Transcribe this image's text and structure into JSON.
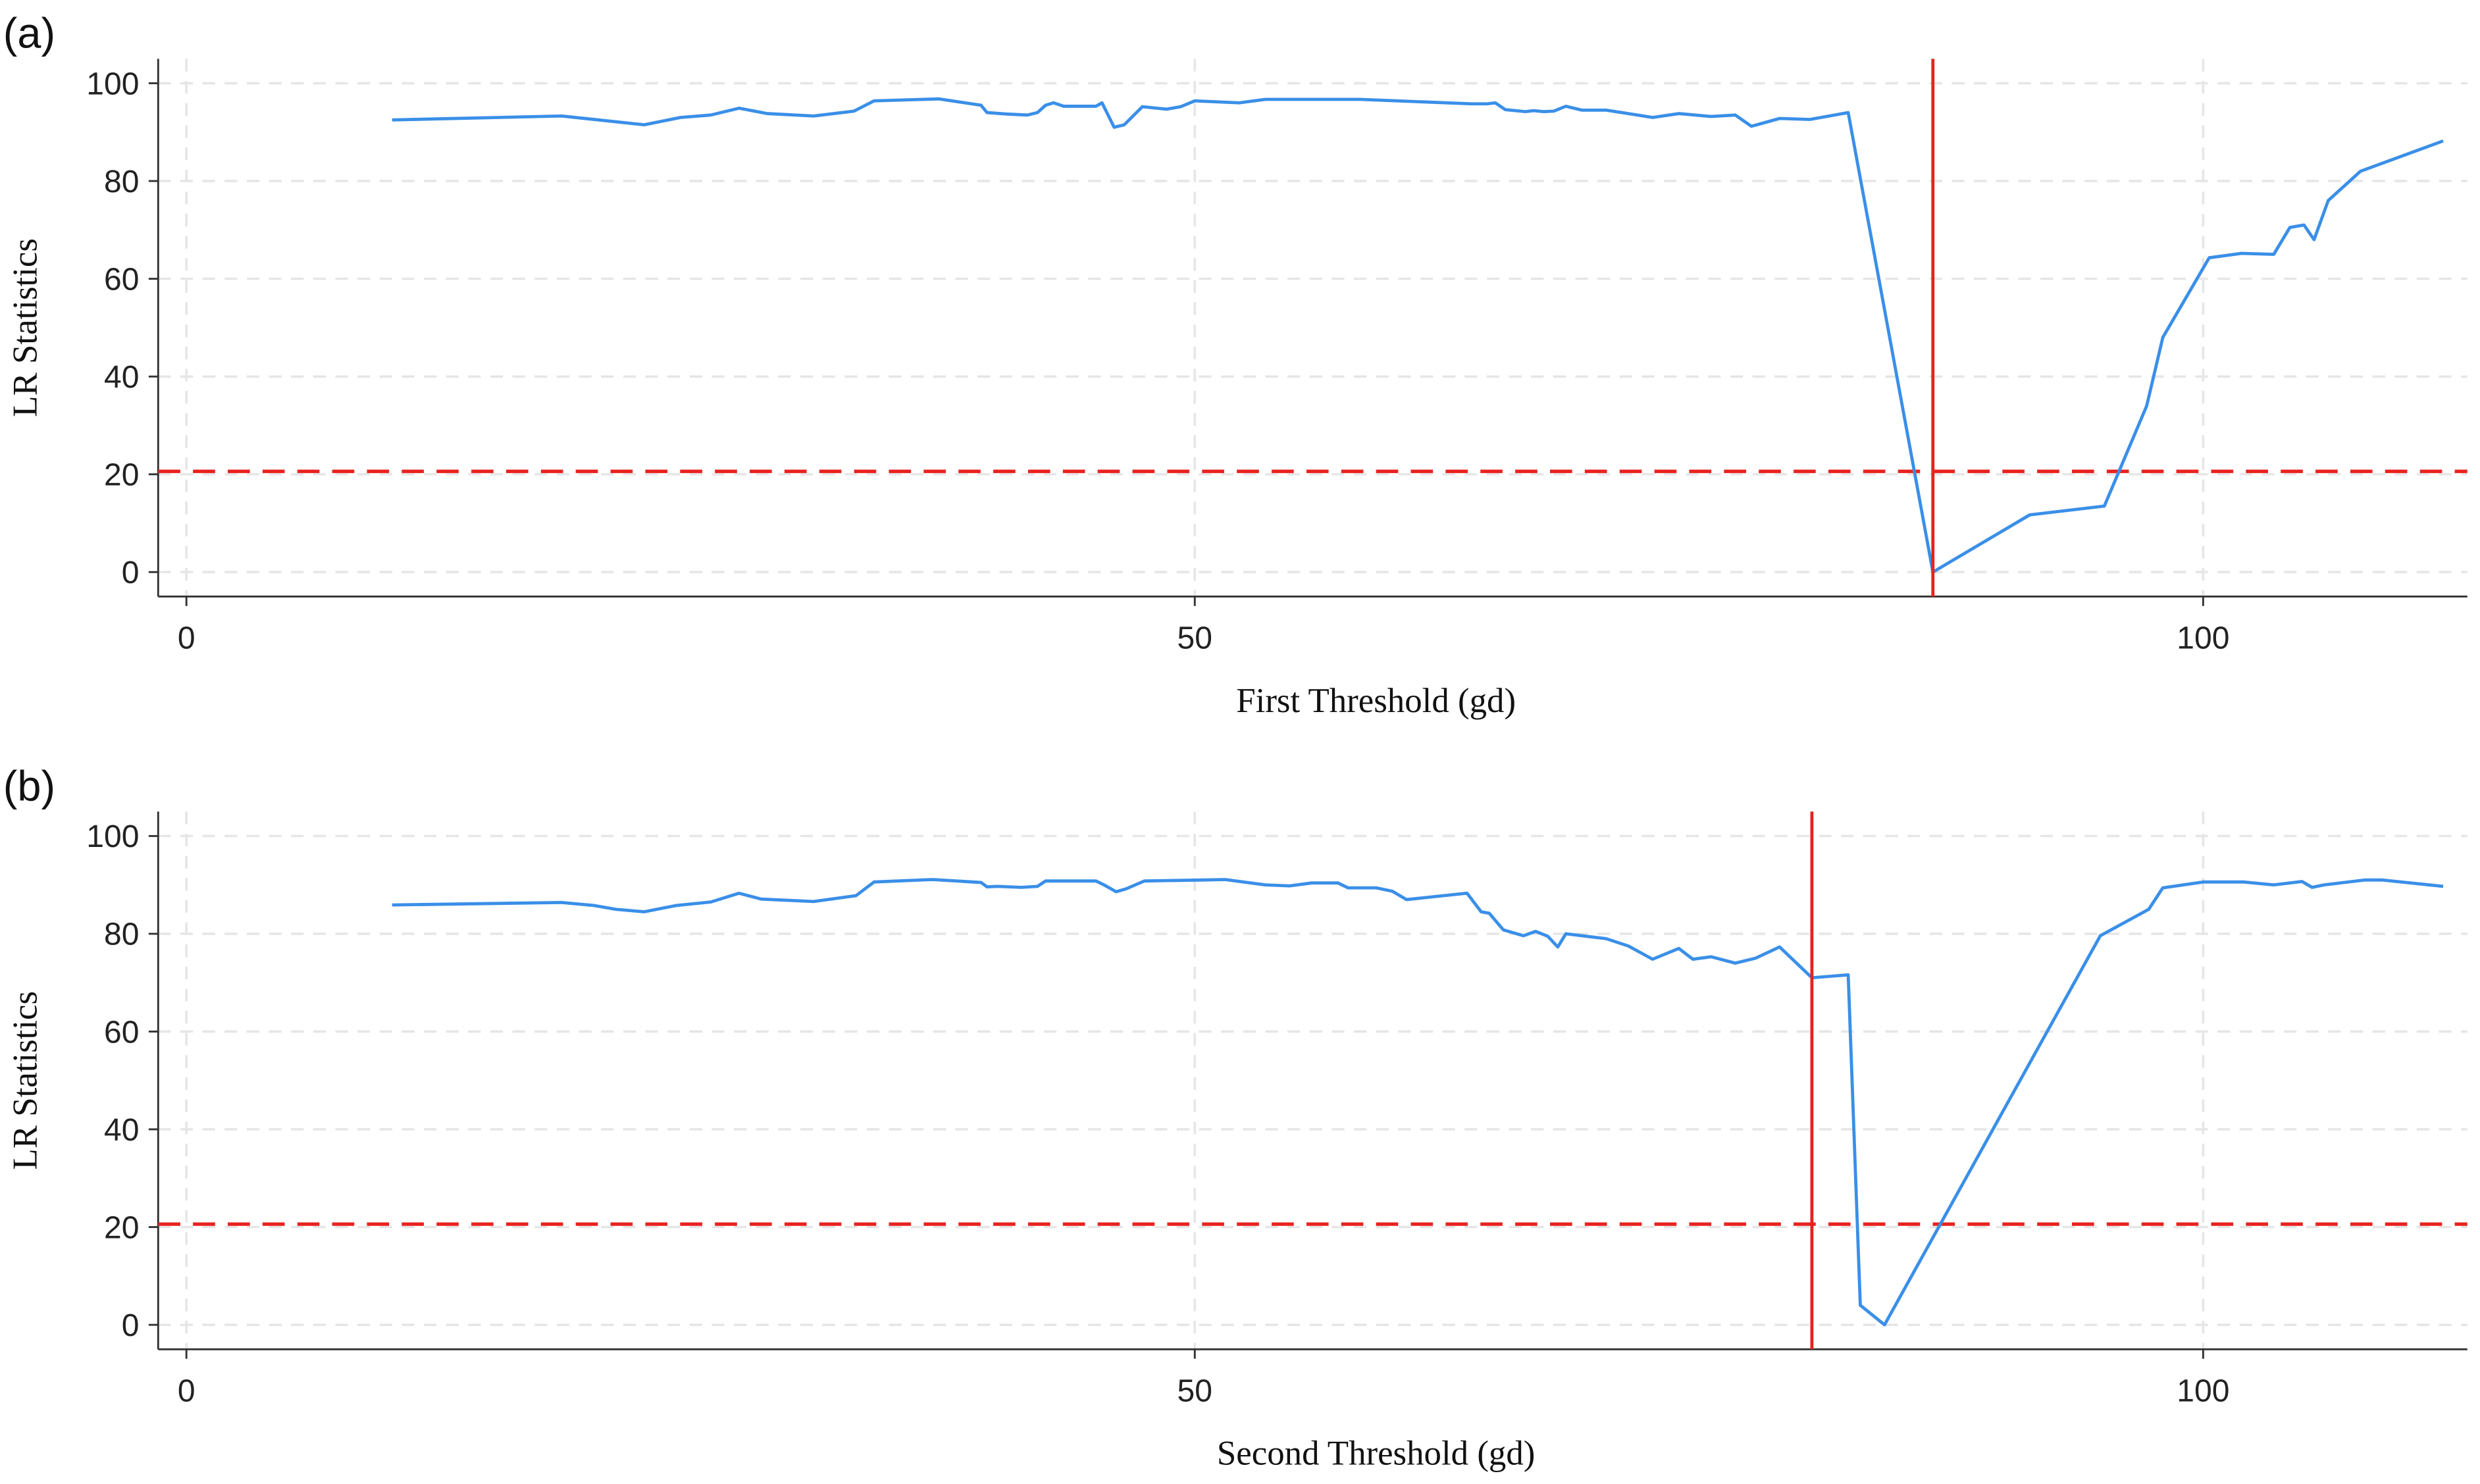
{
  "chart_data": [
    {
      "type": "line",
      "panel_label": "(a)",
      "xlabel": "First Threshold (gd)",
      "ylabel": "LR Statistics",
      "x": [
        10.2,
        18.6,
        22.7,
        24.5,
        26,
        27.4,
        28.8,
        31.1,
        33.1,
        34.1,
        37.3,
        39.4,
        39.7,
        40.7,
        41.7,
        42.2,
        42.6,
        43,
        43.5,
        45.1,
        45.4,
        46,
        46.5,
        47.4,
        48.6,
        49.3,
        50,
        52.2,
        53.5,
        58.2,
        63.7,
        64.5,
        64.9,
        65.4,
        66.4,
        66.8,
        67.3,
        67.8,
        68.4,
        69.2,
        70.4,
        71.5,
        72.7,
        74,
        75.6,
        76.8,
        77.6,
        79,
        80.5,
        82.4,
        86.6,
        91.4,
        95.1,
        97.2,
        98,
        100.3,
        101.9,
        103.5,
        104.3,
        105,
        105.5,
        106.2,
        107.8,
        111.9
      ],
      "values": [
        92.5,
        93.3,
        91.5,
        93,
        93.5,
        94.9,
        93.8,
        93.3,
        94.3,
        96.4,
        96.8,
        95.5,
        94,
        93.7,
        93.5,
        94,
        95.5,
        96,
        95.3,
        95.3,
        96,
        91,
        91.5,
        95.2,
        94.7,
        95.2,
        96.4,
        96,
        96.7,
        96.7,
        95.8,
        95.8,
        96,
        94.6,
        94.2,
        94.4,
        94.2,
        94.3,
        95.3,
        94.5,
        94.5,
        93.8,
        93,
        93.8,
        93.2,
        93.5,
        91.2,
        92.8,
        92.6,
        94,
        0,
        11.7,
        13.5,
        34,
        48,
        64.3,
        65.2,
        65,
        70.5,
        71,
        68,
        76,
        82,
        88.2
      ],
      "color": "#3a8fe8",
      "hline": 20.6,
      "vline": 86.6,
      "ref_color": "#e8221f",
      "xlim": [
        -1.4,
        113.1
      ],
      "ylim": [
        -5,
        105
      ],
      "xticks": [
        0,
        50,
        100
      ],
      "yticks": [
        0,
        20,
        40,
        60,
        80,
        100
      ],
      "grid": true
    },
    {
      "type": "line",
      "panel_label": "(b)",
      "xlabel": "Second Threshold (gd)",
      "ylabel": "LR Statistics",
      "x": [
        10.2,
        18.6,
        20.2,
        21.3,
        22.7,
        24.3,
        26,
        27.4,
        28.5,
        31.1,
        33.2,
        34.1,
        37,
        39.4,
        39.7,
        40.2,
        41.4,
        42.2,
        42.6,
        45.1,
        45.5,
        46.1,
        46.6,
        47.5,
        50.4,
        51.5,
        53.5,
        54.7,
        55.8,
        57.1,
        57.6,
        59,
        59.8,
        60.5,
        63.5,
        64.2,
        64.6,
        65.3,
        66.3,
        66.9,
        67.5,
        68,
        68.4,
        70.4,
        71.5,
        72.7,
        74,
        74.7,
        75.6,
        76.8,
        77.8,
        79,
        80.6,
        82.4,
        83,
        84.2,
        94.9,
        97.3,
        98,
        100,
        102,
        103.5,
        104.9,
        105.4,
        106,
        108,
        108.9,
        111.9
      ],
      "values": [
        85.9,
        86.4,
        85.8,
        85,
        84.5,
        85.8,
        86.5,
        88.3,
        87.1,
        86.6,
        87.8,
        90.6,
        91.1,
        90.5,
        89.6,
        89.7,
        89.5,
        89.7,
        90.8,
        90.8,
        90,
        88.6,
        89.2,
        90.8,
        91,
        91.1,
        90,
        89.8,
        90.4,
        90.4,
        89.4,
        89.4,
        88.7,
        87,
        88.3,
        84.5,
        84.2,
        80.8,
        79.6,
        80.5,
        79.5,
        77.3,
        80,
        79,
        77.5,
        74.8,
        77,
        74.8,
        75.3,
        74,
        75,
        77.3,
        71,
        71.6,
        4,
        0,
        79.6,
        85,
        89.4,
        90.6,
        90.6,
        90,
        90.7,
        89.5,
        90,
        91,
        91,
        89.7
      ],
      "color": "#3a8fe8",
      "hline": 20.6,
      "vline": 80.6,
      "ref_color": "#e8221f",
      "xlim": [
        -1.4,
        113.1
      ],
      "ylim": [
        -5,
        105
      ],
      "xticks": [
        0,
        50,
        100
      ],
      "yticks": [
        0,
        20,
        40,
        60,
        80,
        100
      ],
      "grid": true
    }
  ]
}
